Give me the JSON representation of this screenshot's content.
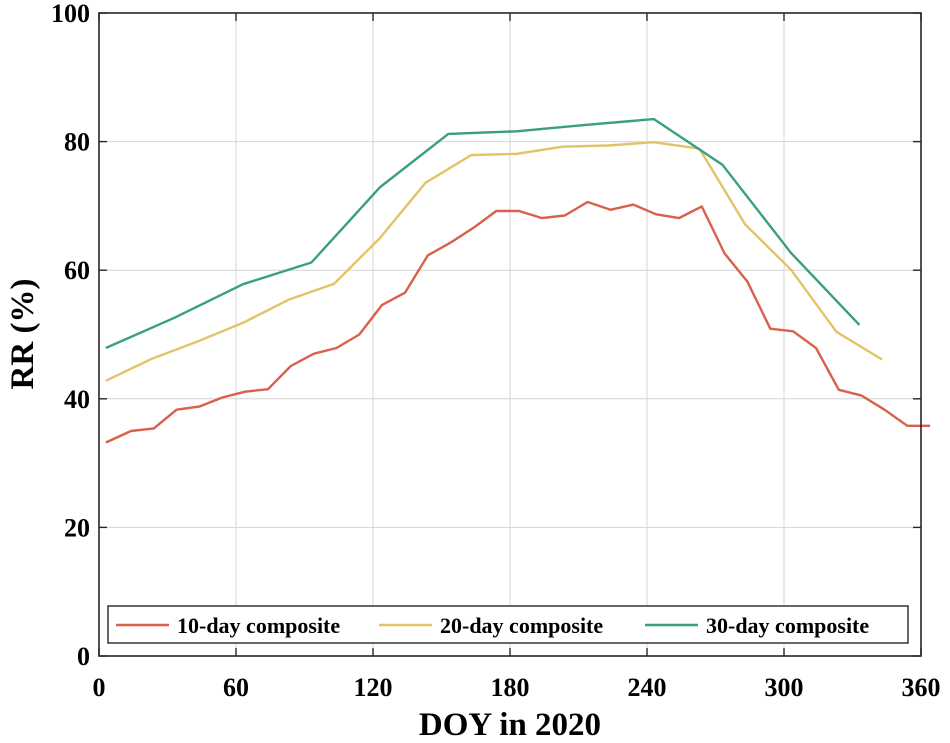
{
  "chart_data": {
    "type": "line",
    "xlabel": "DOY in 2020",
    "ylabel": "RR (%)",
    "xlim": [
      0,
      360
    ],
    "ylim": [
      0,
      100
    ],
    "xticks": [
      0,
      60,
      120,
      180,
      240,
      300,
      360
    ],
    "yticks": [
      0,
      20,
      40,
      60,
      80,
      100
    ],
    "grid": true,
    "legend_position": "bottom",
    "series": [
      {
        "name": "10-day composite",
        "color": "#d9604a",
        "points": [
          [
            3,
            33.2
          ],
          [
            14,
            35
          ],
          [
            24,
            35.4
          ],
          [
            34,
            38.3
          ],
          [
            44,
            38.8
          ],
          [
            54,
            40.2
          ],
          [
            64,
            41.1
          ],
          [
            74,
            41.5
          ],
          [
            84,
            45.1
          ],
          [
            94,
            47
          ],
          [
            104,
            47.9
          ],
          [
            114,
            50
          ],
          [
            124,
            54.6
          ],
          [
            134,
            56.5
          ],
          [
            144,
            62.3
          ],
          [
            154,
            64.3
          ],
          [
            164,
            66.6
          ],
          [
            174,
            69.2
          ],
          [
            184,
            69.2
          ],
          [
            194,
            68.1
          ],
          [
            204,
            68.5
          ],
          [
            214,
            70.6
          ],
          [
            224,
            69.4
          ],
          [
            234,
            70.2
          ],
          [
            244,
            68.7
          ],
          [
            254,
            68.1
          ],
          [
            264,
            69.9
          ],
          [
            274,
            62.6
          ],
          [
            284,
            58.2
          ],
          [
            294,
            50.9
          ],
          [
            304,
            50.5
          ],
          [
            314,
            47.9
          ],
          [
            324,
            41.4
          ],
          [
            334,
            40.5
          ],
          [
            344,
            38.3
          ],
          [
            354,
            35.8
          ],
          [
            364,
            35.8
          ]
        ]
      },
      {
        "name": "20-day composite",
        "color": "#e1c468",
        "points": [
          [
            3,
            42.8
          ],
          [
            23,
            46.2
          ],
          [
            43,
            48.9
          ],
          [
            63,
            51.8
          ],
          [
            83,
            55.4
          ],
          [
            103,
            57.9
          ],
          [
            123,
            65
          ],
          [
            143,
            73.6
          ],
          [
            163,
            77.9
          ],
          [
            183,
            78.1
          ],
          [
            203,
            79.2
          ],
          [
            223,
            79.4
          ],
          [
            243,
            79.9
          ],
          [
            263,
            78.9
          ],
          [
            283,
            67.1
          ],
          [
            303,
            60.1
          ],
          [
            323,
            50.4
          ],
          [
            343,
            46.1
          ]
        ]
      },
      {
        "name": "30-day composite",
        "color": "#3a9e82",
        "points": [
          [
            3,
            47.9
          ],
          [
            33,
            52.6
          ],
          [
            63,
            57.8
          ],
          [
            93,
            61.2
          ],
          [
            123,
            72.9
          ],
          [
            153,
            81.2
          ],
          [
            183,
            81.6
          ],
          [
            213,
            82.6
          ],
          [
            243,
            83.5
          ],
          [
            273,
            76.4
          ],
          [
            303,
            62.7
          ],
          [
            333,
            51.5
          ]
        ]
      }
    ]
  }
}
